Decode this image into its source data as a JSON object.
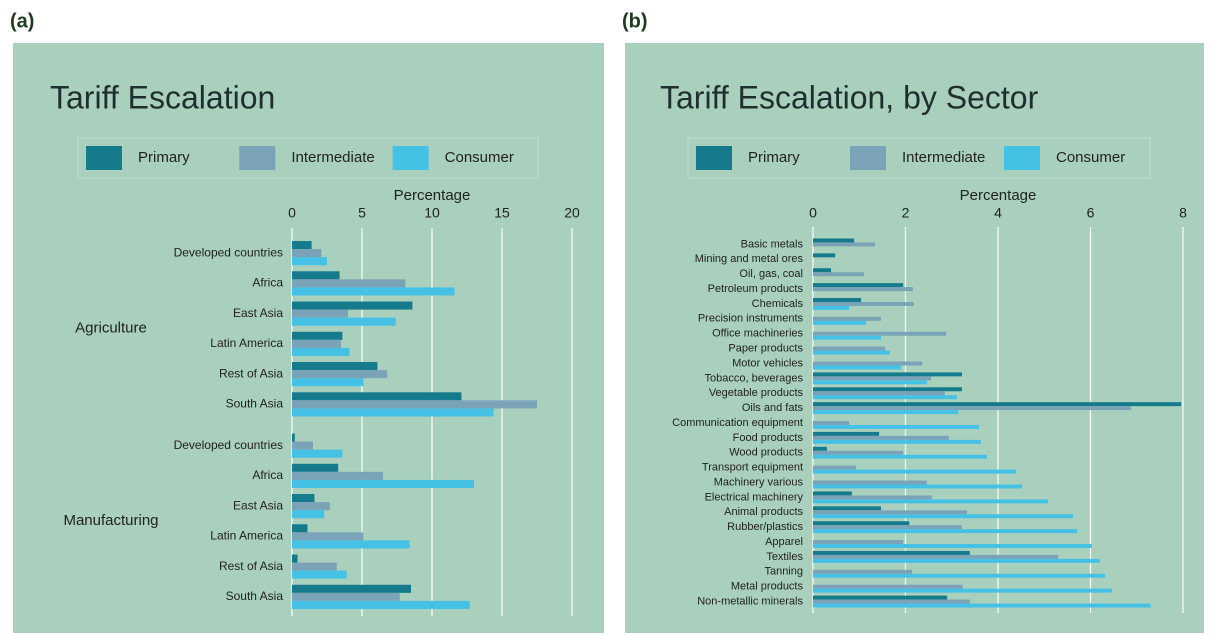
{
  "chart_data": [
    {
      "type": "bar",
      "orientation": "horizontal",
      "panel_label": "(a)",
      "title": "Tariff Escalation",
      "xlabel": "Percentage",
      "groups": [
        {
          "name": "Agriculture",
          "categories": [
            "Developed countries",
            "Africa",
            "East Asia",
            "Latin America",
            "Rest of Asia",
            "South Asia"
          ]
        },
        {
          "name": "Manufacturing",
          "categories": [
            "Developed countries",
            "Africa",
            "East Asia",
            "Latin America",
            "Rest of Asia",
            "South Asia"
          ]
        }
      ],
      "series": [
        {
          "name": "Primary",
          "color": "#157a8c",
          "values": [
            1.4,
            3.4,
            8.6,
            3.6,
            6.1,
            12.1,
            0.2,
            3.3,
            1.6,
            1.1,
            0.4,
            8.5
          ]
        },
        {
          "name": "Intermediate",
          "color": "#7ba3b8",
          "values": [
            2.1,
            8.1,
            4.0,
            3.5,
            6.8,
            17.5,
            1.5,
            6.5,
            2.7,
            5.1,
            3.2,
            7.7
          ]
        },
        {
          "name": "Consumer",
          "color": "#45c1e6",
          "values": [
            2.5,
            11.6,
            7.4,
            4.1,
            5.1,
            14.4,
            3.6,
            13.0,
            2.3,
            8.4,
            3.9,
            12.7
          ]
        }
      ],
      "xlim": [
        0,
        20
      ],
      "xticks": [
        0,
        5,
        10,
        15,
        20
      ],
      "grid": true,
      "legend": "top"
    },
    {
      "type": "bar",
      "orientation": "horizontal",
      "panel_label": "(b)",
      "title": "Tariff Escalation, by Sector",
      "xlabel": "Percentage",
      "categories": [
        "Basic metals",
        "Mining and metal ores",
        "Oil, gas, coal",
        "Petroleum products",
        "Chemicals",
        "Precision instruments",
        "Office machineries",
        "Paper products",
        "Motor vehicles",
        "Tobacco, beverages",
        "Vegetable products",
        "Oils and fats",
        "Communication equipment",
        "Food products",
        "Wood products",
        "Transport equipment",
        "Machinery various",
        "Electrical machinery",
        "Animal products",
        "Rubber/plastics",
        "Apparel",
        "Textiles",
        "Tanning",
        "Metal products",
        "Non-metallic minerals"
      ],
      "series": [
        {
          "name": "Primary",
          "color": "#157a8c",
          "values": [
            0.89,
            0.48,
            0.39,
            1.95,
            1.04,
            0,
            0,
            0,
            0,
            3.22,
            3.22,
            7.96,
            0,
            1.43,
            0.3,
            0,
            0,
            0.84,
            1.47,
            2.08,
            0,
            3.39,
            0,
            0,
            2.9
          ]
        },
        {
          "name": "Intermediate",
          "color": "#7ba3b8",
          "values": [
            1.34,
            0,
            1.1,
            2.16,
            2.18,
            1.47,
            2.88,
            1.56,
            2.36,
            2.55,
            2.85,
            6.88,
            0.78,
            2.94,
            1.95,
            0.93,
            2.46,
            2.57,
            3.33,
            3.22,
            1.95,
            5.3,
            2.14,
            3.24,
            3.39
          ]
        },
        {
          "name": "Consumer",
          "color": "#45c1e6",
          "values": [
            0,
            0,
            0,
            0,
            0.78,
            1.15,
            1.47,
            1.66,
            1.9,
            2.46,
            3.11,
            3.14,
            3.59,
            3.63,
            3.76,
            4.39,
            4.52,
            5.08,
            5.62,
            5.71,
            6.03,
            6.2,
            6.31,
            6.46,
            7.3
          ]
        }
      ],
      "xlim": [
        0,
        8
      ],
      "xticks": [
        0,
        2,
        4,
        6,
        8
      ],
      "grid": true,
      "legend": "top"
    }
  ]
}
